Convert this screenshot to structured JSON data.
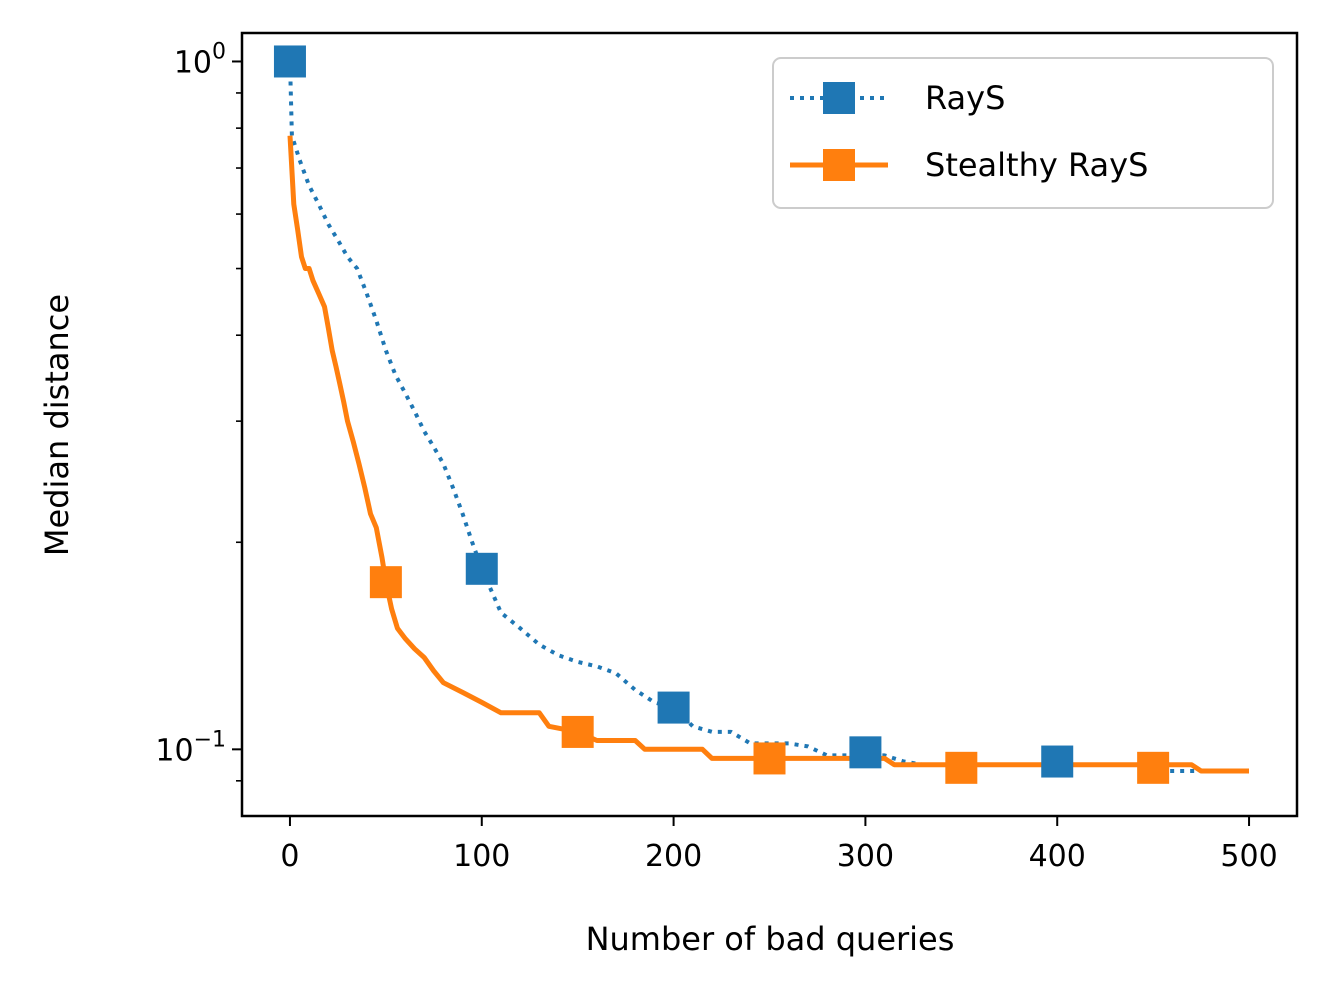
{
  "chart_data": {
    "type": "line",
    "title": "",
    "xlabel": "Number of bad queries",
    "ylabel": "Median distance",
    "xlim": [
      -25,
      525
    ],
    "ylim": [
      0.08,
      1.1
    ],
    "yscale": "log",
    "grid": false,
    "legend_position": "top-right",
    "x_ticks": [
      0,
      100,
      200,
      300,
      400,
      500
    ],
    "x_tick_labels": [
      "0",
      "100",
      "200",
      "300",
      "400",
      "500"
    ],
    "y_major_ticks": [
      {
        "value": 1.0,
        "base": "10",
        "exponent": "0"
      },
      {
        "value": 0.1,
        "base": "10",
        "exponent": "−1"
      }
    ],
    "y_minor_ticks": [
      0.09,
      0.2,
      0.3,
      0.4,
      0.5,
      0.6,
      0.7,
      0.8,
      0.9
    ],
    "series": [
      {
        "name": "RayS",
        "color": "#1f77b4",
        "linestyle": "dotted",
        "marker": "square",
        "points": [
          [
            0,
            1.0
          ],
          [
            1,
            0.78
          ],
          [
            5,
            0.72
          ],
          [
            10,
            0.66
          ],
          [
            15,
            0.62
          ],
          [
            20,
            0.58
          ],
          [
            25,
            0.55
          ],
          [
            30,
            0.52
          ],
          [
            35,
            0.5
          ],
          [
            40,
            0.46
          ],
          [
            45,
            0.42
          ],
          [
            50,
            0.38
          ],
          [
            55,
            0.35
          ],
          [
            60,
            0.33
          ],
          [
            65,
            0.31
          ],
          [
            70,
            0.29
          ],
          [
            75,
            0.275
          ],
          [
            80,
            0.26
          ],
          [
            85,
            0.24
          ],
          [
            90,
            0.22
          ],
          [
            95,
            0.2
          ],
          [
            100,
            0.183
          ],
          [
            105,
            0.17
          ],
          [
            110,
            0.158
          ],
          [
            120,
            0.15
          ],
          [
            130,
            0.142
          ],
          [
            140,
            0.137
          ],
          [
            150,
            0.134
          ],
          [
            160,
            0.132
          ],
          [
            170,
            0.129
          ],
          [
            180,
            0.122
          ],
          [
            190,
            0.117
          ],
          [
            200,
            0.115
          ],
          [
            210,
            0.108
          ],
          [
            220,
            0.106
          ],
          [
            230,
            0.106
          ],
          [
            240,
            0.102
          ],
          [
            260,
            0.102
          ],
          [
            270,
            0.101
          ],
          [
            280,
            0.098
          ],
          [
            300,
            0.098
          ],
          [
            310,
            0.098
          ],
          [
            320,
            0.096
          ],
          [
            330,
            0.095
          ],
          [
            340,
            0.095
          ],
          [
            400,
            0.095
          ],
          [
            440,
            0.095
          ],
          [
            450,
            0.093
          ],
          [
            500,
            0.093
          ]
        ],
        "markers": [
          [
            0,
            1.0
          ],
          [
            100,
            0.183
          ],
          [
            200,
            0.115
          ],
          [
            300,
            0.099
          ],
          [
            400,
            0.096
          ]
        ]
      },
      {
        "name": "Stealthy RayS",
        "color": "#ff7f0e",
        "linestyle": "solid",
        "marker": "square",
        "points": [
          [
            0,
            0.78
          ],
          [
            2,
            0.62
          ],
          [
            4,
            0.57
          ],
          [
            6,
            0.52
          ],
          [
            8,
            0.5
          ],
          [
            10,
            0.5
          ],
          [
            12,
            0.48
          ],
          [
            15,
            0.46
          ],
          [
            18,
            0.44
          ],
          [
            20,
            0.41
          ],
          [
            22,
            0.38
          ],
          [
            24,
            0.36
          ],
          [
            26,
            0.34
          ],
          [
            28,
            0.32
          ],
          [
            30,
            0.3
          ],
          [
            33,
            0.28
          ],
          [
            36,
            0.26
          ],
          [
            39,
            0.24
          ],
          [
            42,
            0.22
          ],
          [
            45,
            0.21
          ],
          [
            48,
            0.19
          ],
          [
            50,
            0.175
          ],
          [
            53,
            0.16
          ],
          [
            56,
            0.15
          ],
          [
            60,
            0.145
          ],
          [
            65,
            0.14
          ],
          [
            70,
            0.136
          ],
          [
            75,
            0.13
          ],
          [
            80,
            0.125
          ],
          [
            90,
            0.121
          ],
          [
            100,
            0.117
          ],
          [
            110,
            0.113
          ],
          [
            130,
            0.113
          ],
          [
            135,
            0.108
          ],
          [
            150,
            0.106
          ],
          [
            160,
            0.103
          ],
          [
            180,
            0.103
          ],
          [
            185,
            0.1
          ],
          [
            200,
            0.1
          ],
          [
            215,
            0.1
          ],
          [
            220,
            0.097
          ],
          [
            250,
            0.097
          ],
          [
            300,
            0.097
          ],
          [
            310,
            0.097
          ],
          [
            315,
            0.095
          ],
          [
            350,
            0.095
          ],
          [
            420,
            0.095
          ],
          [
            470,
            0.095
          ],
          [
            475,
            0.093
          ],
          [
            500,
            0.093
          ]
        ],
        "markers": [
          [
            50,
            0.175
          ],
          [
            150,
            0.106
          ],
          [
            250,
            0.097
          ],
          [
            350,
            0.094
          ],
          [
            450,
            0.094
          ]
        ]
      }
    ]
  }
}
